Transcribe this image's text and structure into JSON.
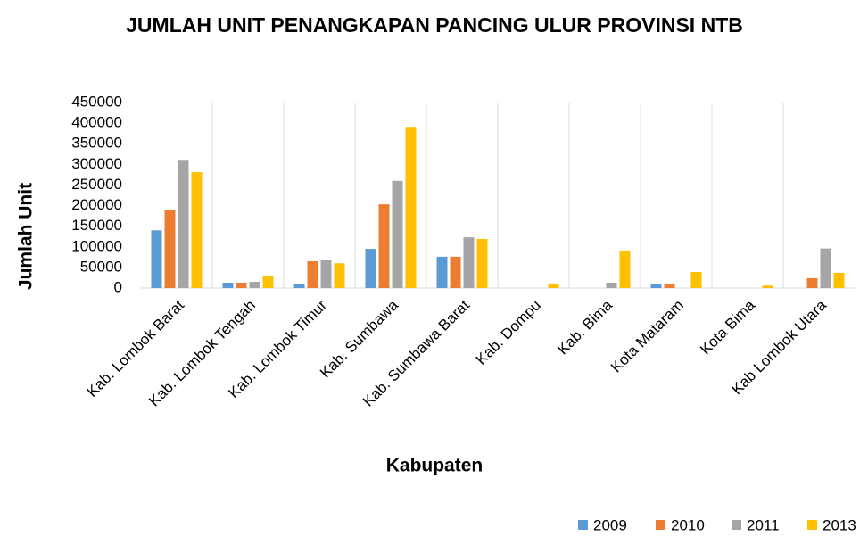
{
  "chart_data": {
    "type": "bar",
    "title": "JUMLAH UNIT PENANGKAPAN PANCING ULUR PROVINSI NTB",
    "x_label": "Kabupaten",
    "y_label": "Jumlah Unit",
    "categories": [
      "Kab. Lombok Barat",
      "Kab. Lombok Tengah",
      "Kab. Lombok Timur",
      "Kab. Sumbawa",
      "Kab. Sumbawa Barat",
      "Kab. Dompu",
      "Kab. Bima",
      "Kota Mataram",
      "Kota Bima",
      "Kab Lombok Utara"
    ],
    "series": [
      {
        "name": "2009",
        "color": "#5b9bd5",
        "values": [
          140000,
          13000,
          10000,
          95000,
          76000,
          0,
          0,
          9000,
          0,
          0
        ]
      },
      {
        "name": "2010",
        "color": "#ed7d31",
        "values": [
          190000,
          13000,
          65000,
          203000,
          76000,
          0,
          0,
          9000,
          0,
          24000
        ]
      },
      {
        "name": "2011",
        "color": "#a5a5a5",
        "values": [
          311000,
          15000,
          69000,
          260000,
          123000,
          0,
          13000,
          0,
          0,
          96000
        ]
      },
      {
        "name": "2013",
        "color": "#ffc000",
        "values": [
          281000,
          28000,
          60000,
          391000,
          119000,
          11000,
          91000,
          39000,
          6000,
          37000
        ]
      }
    ],
    "ylim": [
      0,
      450000
    ],
    "yticks": [
      0,
      50000,
      100000,
      150000,
      200000,
      250000,
      300000,
      350000,
      400000,
      450000
    ],
    "legend": "bottom-right"
  }
}
